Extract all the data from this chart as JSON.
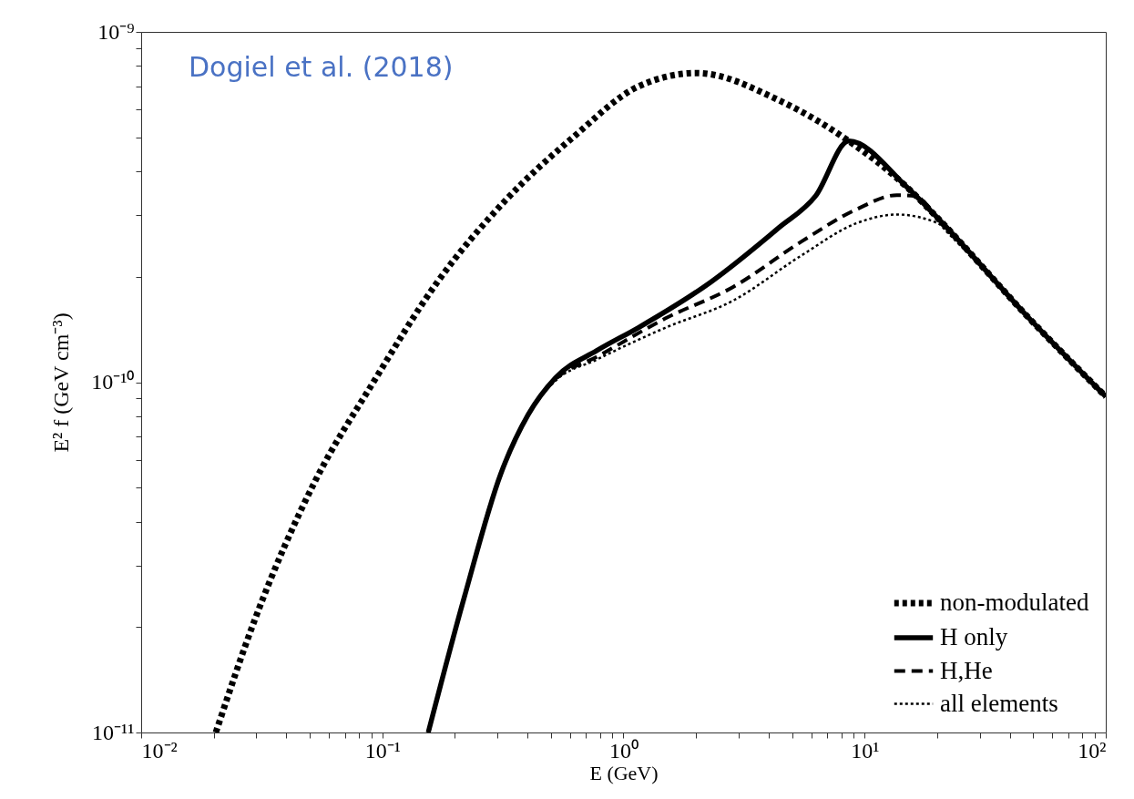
{
  "chart_data": {
    "type": "line",
    "xlabel": "E (GeV)",
    "ylabel": "E² f  (GeV cm⁻³)",
    "annotations": [
      "Dogiel et al. (2018)"
    ],
    "log": "xy",
    "legend": "bottom right",
    "grid": false,
    "xlim": [
      0.01,
      100
    ],
    "ylim": [
      1e-11,
      1e-09
    ],
    "xticks": [
      {
        "value": 0.01,
        "label": "10⁻²"
      },
      {
        "value": 0.02,
        "label": null
      },
      {
        "value": 0.03,
        "label": null
      },
      {
        "value": 0.04,
        "label": null
      },
      {
        "value": 0.05,
        "label": null
      },
      {
        "value": 0.06,
        "label": null
      },
      {
        "value": 0.07,
        "label": null
      },
      {
        "value": 0.08,
        "label": null
      },
      {
        "value": 0.09,
        "label": null
      },
      {
        "value": 0.1,
        "label": "10⁻¹"
      },
      {
        "value": 0.2,
        "label": null
      },
      {
        "value": 0.3,
        "label": null
      },
      {
        "value": 0.4,
        "label": null
      },
      {
        "value": 0.5,
        "label": null
      },
      {
        "value": 0.6,
        "label": null
      },
      {
        "value": 0.7,
        "label": null
      },
      {
        "value": 0.8,
        "label": null
      },
      {
        "value": 0.9,
        "label": null
      },
      {
        "value": 1,
        "label": "10⁰"
      },
      {
        "value": 2,
        "label": null
      },
      {
        "value": 3,
        "label": null
      },
      {
        "value": 4,
        "label": null
      },
      {
        "value": 5,
        "label": null
      },
      {
        "value": 6,
        "label": null
      },
      {
        "value": 7,
        "label": null
      },
      {
        "value": 8,
        "label": null
      },
      {
        "value": 9,
        "label": null
      },
      {
        "value": 10,
        "label": "10¹"
      },
      {
        "value": 20,
        "label": null
      },
      {
        "value": 30,
        "label": null
      },
      {
        "value": 40,
        "label": null
      },
      {
        "value": 50,
        "label": null
      },
      {
        "value": 60,
        "label": null
      },
      {
        "value": 70,
        "label": null
      },
      {
        "value": 80,
        "label": null
      },
      {
        "value": 90,
        "label": null
      },
      {
        "value": 100,
        "label": "10²"
      }
    ],
    "yticks": [
      {
        "value": 1e-11,
        "label": "10⁻¹¹"
      },
      {
        "value": 2e-11,
        "label": null
      },
      {
        "value": 3e-11,
        "label": null
      },
      {
        "value": 4e-11,
        "label": null
      },
      {
        "value": 5e-11,
        "label": null
      },
      {
        "value": 6e-11,
        "label": null
      },
      {
        "value": 7e-11,
        "label": null
      },
      {
        "value": 8e-11,
        "label": null
      },
      {
        "value": 9e-11,
        "label": null
      },
      {
        "value": 1e-10,
        "label": "10⁻¹⁰"
      },
      {
        "value": 2e-10,
        "label": null
      },
      {
        "value": 3e-10,
        "label": null
      },
      {
        "value": 4e-10,
        "label": null
      },
      {
        "value": 5e-10,
        "label": null
      },
      {
        "value": 6e-10,
        "label": null
      },
      {
        "value": 7e-10,
        "label": null
      },
      {
        "value": 8e-10,
        "label": null
      },
      {
        "value": 9e-10,
        "label": null
      },
      {
        "value": 1e-09,
        "label": "10⁻⁹"
      }
    ],
    "series": [
      {
        "name": "non-modulated",
        "color": "#000000",
        "line_style": "dotted",
        "x": [
          0.0204,
          0.0296,
          0.0522,
          0.0918,
          0.169,
          0.325,
          0.622,
          1.15,
          2.01,
          4.41,
          8.6,
          15,
          20.2,
          48.2,
          100
        ],
        "values": [
          1e-11,
          2.1e-11,
          5.16e-11,
          1e-10,
          1.93e-10,
          3.31e-10,
          5.02e-10,
          6.98e-10,
          7.63e-10,
          6.38e-10,
          4.88e-10,
          3.6e-10,
          2.93e-10,
          1.52e-10,
          9.1e-11
        ]
      },
      {
        "name": "H only",
        "color": "#000000",
        "line_style": "solid",
        "x": [
          0.155,
          0.219,
          0.31,
          0.403,
          0.523,
          0.774,
          1.15,
          2.3,
          4.41,
          6.26,
          8.6,
          15,
          20.2,
          48.2,
          100
        ],
        "values": [
          1e-11,
          2.44e-11,
          5.48e-11,
          8.09e-11,
          1.03e-10,
          1.23e-10,
          1.43e-10,
          1.93e-10,
          2.76e-10,
          3.4e-10,
          4.88e-10,
          3.6e-10,
          2.93e-10,
          1.52e-10,
          9.1e-11
        ]
      },
      {
        "name": "H,He",
        "color": "#000000",
        "line_style": "dashed",
        "x": [
          0.155,
          0.219,
          0.31,
          0.403,
          0.523,
          0.774,
          1.49,
          2.85,
          5.47,
          9.22,
          13.6,
          16.2,
          20.2,
          48.2,
          100
        ],
        "values": [
          1e-11,
          2.44e-11,
          5.48e-11,
          8.09e-11,
          1.02e-10,
          1.18e-10,
          1.52e-10,
          1.87e-10,
          2.52e-10,
          3.11e-10,
          3.42e-10,
          3.4e-10,
          2.93e-10,
          1.52e-10,
          9.1e-11
        ]
      },
      {
        "name": "all elements",
        "color": "#000000",
        "line_style": "dotted",
        "x": [
          0.155,
          0.219,
          0.31,
          0.403,
          0.523,
          0.774,
          1.49,
          2.85,
          5.47,
          9.22,
          13.6,
          20.2,
          22,
          48.2,
          100
        ],
        "values": [
          1e-11,
          2.44e-11,
          5.48e-11,
          8.09e-11,
          1.01e-10,
          1.16e-10,
          1.43e-10,
          1.71e-10,
          2.3e-10,
          2.84e-10,
          3.01e-10,
          2.84e-10,
          2.68e-10,
          1.52e-10,
          9.1e-11
        ]
      }
    ]
  }
}
